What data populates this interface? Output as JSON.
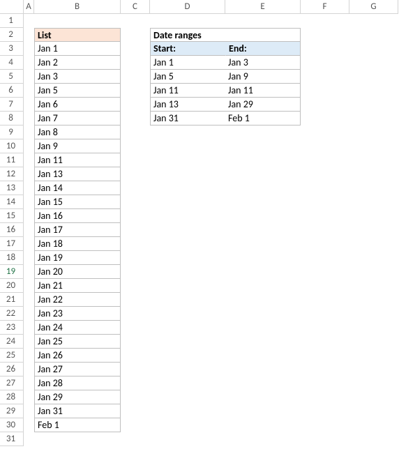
{
  "columns": [
    "A",
    "B",
    "C",
    "D",
    "E",
    "F",
    "G"
  ],
  "rows": [
    "1",
    "2",
    "3",
    "4",
    "5",
    "6",
    "7",
    "8",
    "9",
    "10",
    "11",
    "12",
    "13",
    "14",
    "15",
    "16",
    "17",
    "18",
    "19",
    "20",
    "21",
    "22",
    "23",
    "24",
    "25",
    "26",
    "27",
    "28",
    "29",
    "30",
    "31"
  ],
  "list": {
    "header": "List",
    "items": [
      "Jan 1",
      "Jan 2",
      "Jan 3",
      "Jan 5",
      "Jan 6",
      "Jan 7",
      "Jan 8",
      "Jan 9",
      "Jan 11",
      "Jan 13",
      "Jan 14",
      "Jan 15",
      "Jan 16",
      "Jan 17",
      "Jan 18",
      "Jan 19",
      "Jan 20",
      "Jan 21",
      "Jan 22",
      "Jan 23",
      "Jan 24",
      "Jan 25",
      "Jan 26",
      "Jan 27",
      "Jan 28",
      "Jan 29",
      "Jan 31",
      "Feb 1"
    ]
  },
  "dateRanges": {
    "title": "Date ranges",
    "sub": {
      "start": "Start:",
      "end": "End:"
    },
    "rows": [
      {
        "start": "Jan 1",
        "end": "Jan 3"
      },
      {
        "start": "Jan 5",
        "end": "Jan 9"
      },
      {
        "start": "Jan 11",
        "end": "Jan 11"
      },
      {
        "start": "Jan 13",
        "end": "Jan 29"
      },
      {
        "start": "Jan 31",
        "end": "Feb 1"
      }
    ]
  },
  "selectedRow": 19,
  "colors": {
    "listHeaderBg": "#fce4d6",
    "drSubBg": "#ddebf7",
    "gridBorder": "#bfbfbf",
    "hdrBorder": "#d4d4d4"
  }
}
